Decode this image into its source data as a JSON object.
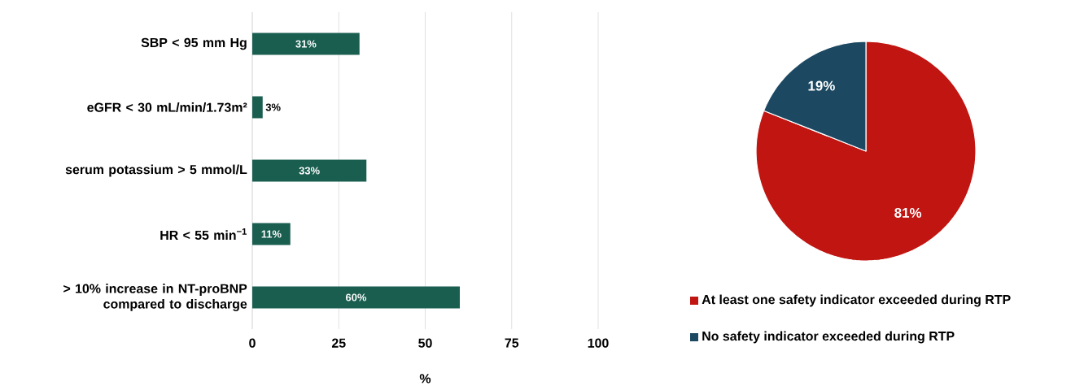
{
  "chart_data": [
    {
      "type": "bar",
      "orientation": "horizontal",
      "categories": [
        "SBP < 95 mm Hg",
        "eGFR < 30 mL/min/1.73m²",
        "serum potassium > 5 mmol/L",
        "HR < 55 min$^{−1}$",
        "> 10% increase in NT-proBNP compared to discharge"
      ],
      "values": [
        31,
        3,
        33,
        11,
        60
      ],
      "value_labels": [
        "31%",
        "3%",
        "33%",
        "11%",
        "60%"
      ],
      "color": "#1a5e50",
      "xlim": [
        0,
        100
      ],
      "xticks": [
        0,
        25,
        50,
        75,
        100
      ],
      "xlabel": "%",
      "grid": "x"
    },
    {
      "type": "pie",
      "categories": [
        "At least one safety indicator exceeded during RTP",
        "No safety indicator exceeded during RTP"
      ],
      "values": [
        81,
        19
      ],
      "value_labels": [
        "81%",
        "19%"
      ],
      "colors": [
        "#c01511",
        "#1c4862"
      ],
      "legend": "bottom"
    }
  ]
}
